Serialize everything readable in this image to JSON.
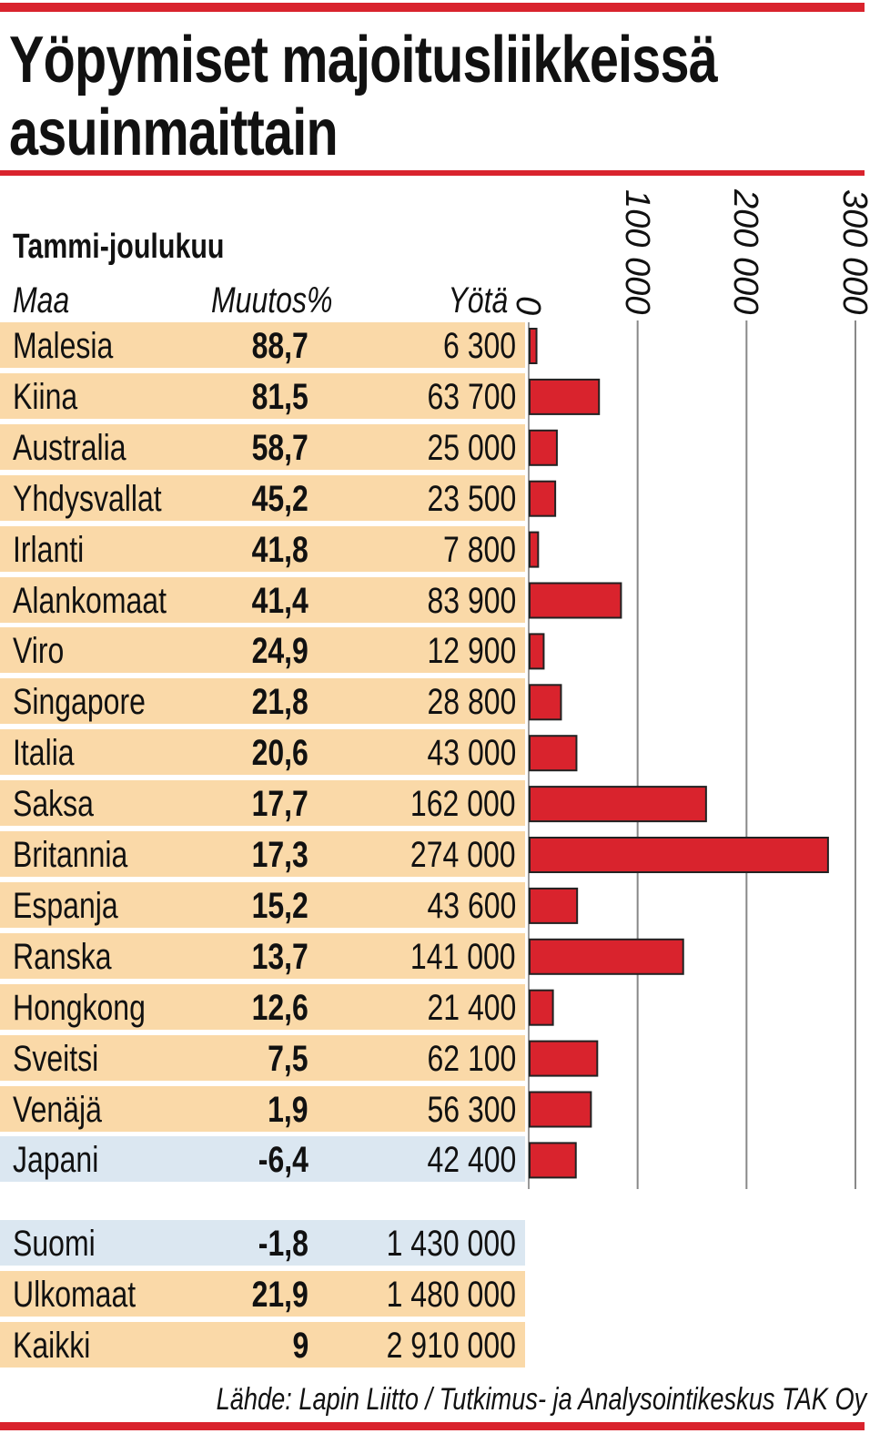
{
  "title_lines": [
    "Yöpymiset majoitusliikkeissä",
    "asuinmaittain"
  ],
  "subtitle": "Tammi-joulukuu",
  "columns": {
    "country": "Maa",
    "change": "Muutos%",
    "nights": "Yötä"
  },
  "colors": {
    "accent": "#d9232d",
    "row_positive": "#fad9a8",
    "row_negative": "#dbe7f1",
    "bar": "#d9232d",
    "grid": "#888888"
  },
  "chart_data": {
    "type": "bar",
    "orientation": "horizontal",
    "categories": [
      "Malesia",
      "Kiina",
      "Australia",
      "Yhdysvallat",
      "Irlanti",
      "Alankomaat",
      "Viro",
      "Singapore",
      "Italia",
      "Saksa",
      "Britannia",
      "Espanja",
      "Ranska",
      "Hongkong",
      "Sveitsi",
      "Venäjä",
      "Japani"
    ],
    "values": [
      6300,
      63700,
      25000,
      23500,
      7800,
      83900,
      12900,
      28800,
      43000,
      162000,
      274000,
      43600,
      141000,
      21400,
      62100,
      56300,
      42400
    ],
    "value_labels": [
      "6 300",
      "63 700",
      "25 000",
      "23 500",
      "7 800",
      "83 900",
      "12 900",
      "28 800",
      "43 000",
      "162 000",
      "274 000",
      "43 600",
      "141 000",
      "21 400",
      "62 100",
      "56 300",
      "42 400"
    ],
    "change_pct": [
      "88,7",
      "81,5",
      "58,7",
      "45,2",
      "41,8",
      "41,4",
      "24,9",
      "21,8",
      "20,6",
      "17,7",
      "17,3",
      "15,2",
      "13,7",
      "12,6",
      "7,5",
      "1,9",
      "-6,4"
    ],
    "xlim": [
      0,
      300000
    ],
    "xticks": [
      0,
      100000,
      200000,
      300000
    ],
    "xtick_labels": [
      "0",
      "100 000",
      "200 000",
      "300 000"
    ],
    "grid": true
  },
  "totals": [
    {
      "country": "Suomi",
      "change": "-1,8",
      "nights": "1 430 000"
    },
    {
      "country": "Ulkomaat",
      "change": "21,9",
      "nights": "1 480 000"
    },
    {
      "country": "Kaikki",
      "change": "9",
      "nights": "2 910 000"
    }
  ],
  "source": "Lähde: Lapin Liitto / Tutkimus- ja Analysointikeskus TAK Oy"
}
